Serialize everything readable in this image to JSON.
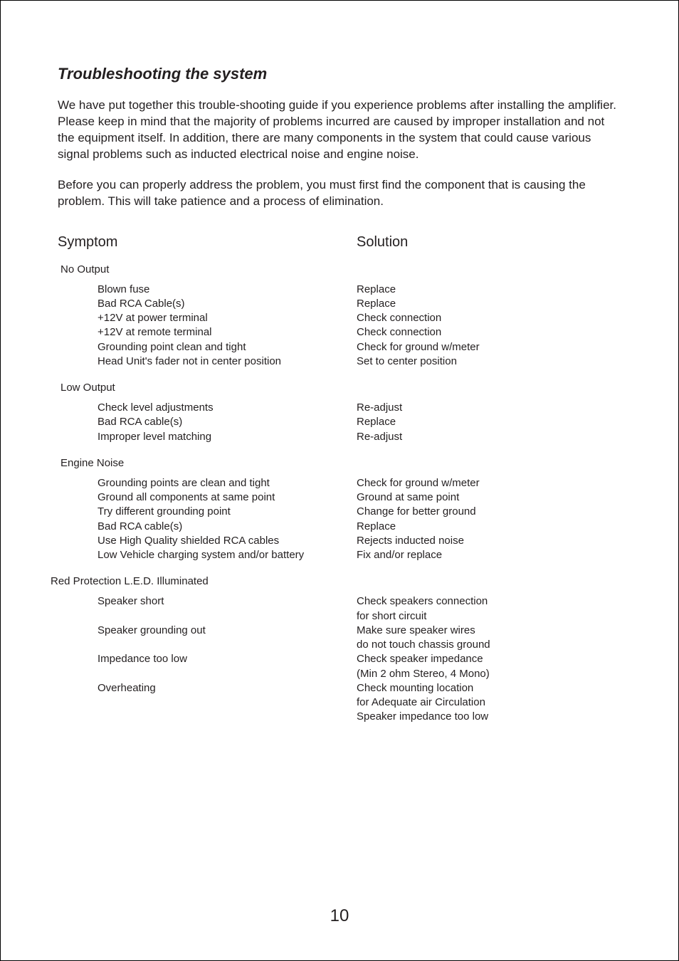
{
  "title": "Troubleshooting the system",
  "intro": [
    "We have put together this trouble-shooting guide if you experience problems after installing the amplifier. Please keep in mind that the majority of problems incurred are caused by improper installation and not the equipment itself. In addition, there are many components in the system that could cause various signal problems such as inducted electrical noise and engine noise.",
    "Before you can properly address the problem, you must first find the component that is causing the problem. This will take patience and a process of elimination."
  ],
  "headers": {
    "left": "Symptom",
    "right": "Solution"
  },
  "sections": [
    {
      "label": "No Output",
      "rows": [
        {
          "symptom": "Blown fuse",
          "solution": "Replace"
        },
        {
          "symptom": "Bad RCA Cable(s)",
          "solution": "Replace"
        },
        {
          "symptom": "+12V at power terminal",
          "solution": "Check connection"
        },
        {
          "symptom": "+12V at remote terminal",
          "solution": "Check connection"
        },
        {
          "symptom": "Grounding point clean and tight",
          "solution": "Check for ground w/meter"
        },
        {
          "symptom": "Head Unit's fader not in center position",
          "solution": "Set to center position"
        }
      ]
    },
    {
      "label": "Low Output",
      "rows": [
        {
          "symptom": "Check level adjustments",
          "solution": "Re-adjust"
        },
        {
          "symptom": "Bad RCA cable(s)",
          "solution": "Replace"
        },
        {
          "symptom": "Improper level matching",
          "solution": "Re-adjust"
        }
      ]
    },
    {
      "label": "Engine Noise",
      "rows": [
        {
          "symptom": "Grounding points are clean and tight",
          "solution": "Check for ground w/meter"
        },
        {
          "symptom": "Ground all components at same point",
          "solution": "Ground at same point"
        },
        {
          "symptom": "Try different grounding point",
          "solution": "Change for better ground"
        },
        {
          "symptom": "Bad RCA cable(s)",
          "solution": "Replace"
        },
        {
          "symptom": "Use High Quality shielded RCA cables",
          "solution": "Rejects inducted noise"
        },
        {
          "symptom": "Low Vehicle charging system and/or battery",
          "solution": "Fix and/or replace"
        }
      ]
    },
    {
      "label": "Red Protection L.E.D. Illuminated",
      "rows": [
        {
          "symptom": "Speaker short",
          "solution": "Check speakers connection"
        },
        {
          "symptom": "",
          "solution": "for short circuit"
        },
        {
          "symptom": "Speaker grounding out",
          "solution": "Make sure speaker wires"
        },
        {
          "symptom": "",
          "solution": "do not touch chassis ground"
        },
        {
          "symptom": "Impedance too low",
          "solution": "Check speaker impedance"
        },
        {
          "symptom": "",
          "solution": "(Min 2 ohm Stereo, 4 Mono)"
        },
        {
          "symptom": "Overheating",
          "solution": "Check mounting location"
        },
        {
          "symptom": "",
          "solution": "for Adequate air Circulation"
        },
        {
          "symptom": "",
          "solution": "Speaker impedance too low"
        }
      ]
    }
  ],
  "pageNumber": "10"
}
